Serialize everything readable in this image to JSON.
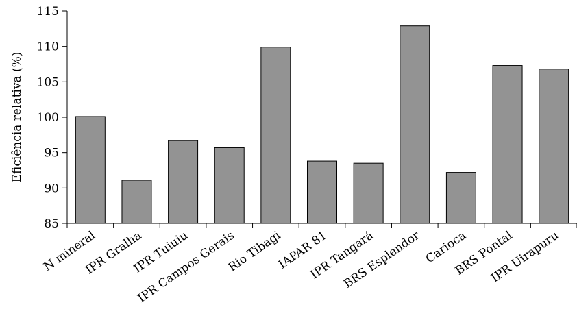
{
  "chart_data": {
    "type": "bar",
    "title": "",
    "xlabel": "",
    "ylabel": "Eficiência relativa (%)",
    "ylim": [
      85,
      115
    ],
    "yticks": [
      85,
      90,
      95,
      100,
      105,
      110,
      115
    ],
    "grid": false,
    "legend": "none",
    "bar_color": "#939393",
    "categories": [
      "N mineral",
      "IPR Gralha",
      "IPR Tuiuiu",
      "IPR Campos Gerais",
      "Rio Tibagi",
      "IAPAR 81",
      "IPR Tangará",
      "BRS Esplendor",
      "Carioca",
      "BRS Pontal",
      "IPR Uirapuru"
    ],
    "values": [
      100.1,
      91.1,
      96.7,
      95.7,
      109.9,
      93.8,
      93.5,
      112.9,
      92.2,
      107.3,
      106.8
    ]
  }
}
